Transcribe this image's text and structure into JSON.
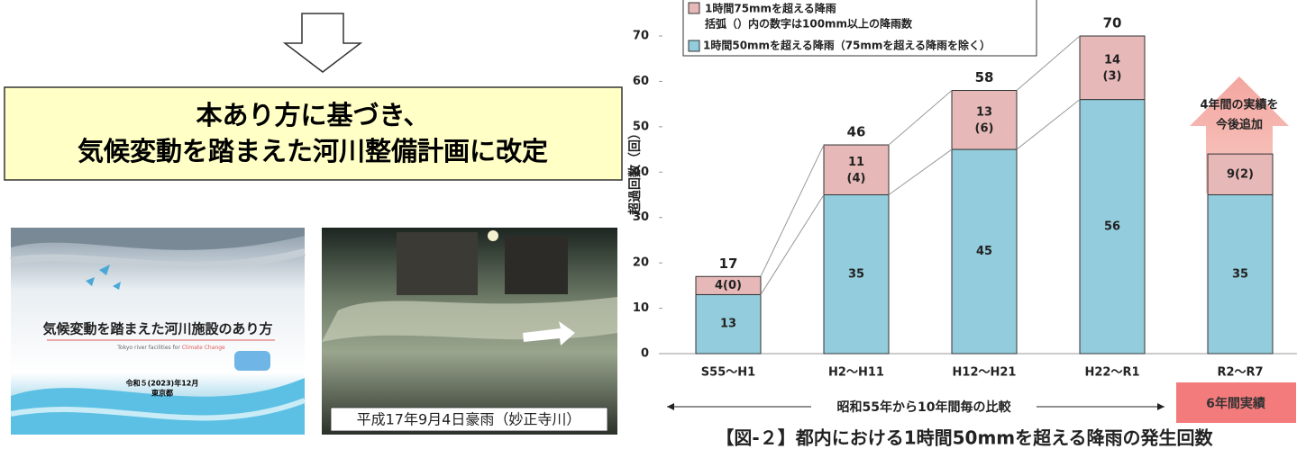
{
  "arrow_box": {
    "lines": [
      "本あり方に基づき、",
      "気候変動を踏まえた河川整備計画に改定"
    ]
  },
  "cover": {
    "title": "気候変動を踏まえた河川施設のあり方",
    "subtitle_parts": [
      "Tokyo river facilities for ",
      "Climate Change"
    ],
    "date": "令和５(2023)年12月",
    "author": "東京都"
  },
  "photo": {
    "caption": "平成17年9月4日豪雨（妙正寺川）"
  },
  "chart_data": {
    "type": "bar",
    "stacked": true,
    "categories": [
      "S55～H1",
      "H2～H11",
      "H12～H21",
      "H22～R1",
      "R2～R7"
    ],
    "series": [
      {
        "name": "1時間50mmを超える降雨（75mmを超える降雨を除く）",
        "color": "#93cddd",
        "values": [
          13,
          35,
          45,
          56,
          35
        ]
      },
      {
        "name": "1時間75mmを超える降雨",
        "color": "#e6b9b8",
        "values": [
          4,
          11,
          13,
          14,
          9
        ],
        "value_labels": [
          "4(0)",
          "11 (4)",
          "13 (6)",
          "14 (3)",
          "9(2)"
        ]
      }
    ],
    "totals": [
      17,
      46,
      58,
      70,
      null
    ],
    "ylim": [
      0,
      70
    ],
    "yticks": [
      0,
      10,
      20,
      30,
      40,
      50,
      60,
      70
    ],
    "y_label": "超過回数（回）",
    "x_label": "昭和55年から10年間毎の比較",
    "note_box": "6年間実績",
    "arrow_note": [
      "4年間の実績を",
      "今後追加"
    ],
    "legend_note": "括弧（）内の数字は100mm以上の降雨数",
    "caption": "【図-２】都内における1時間50mmを超える降雨の発生回数"
  }
}
